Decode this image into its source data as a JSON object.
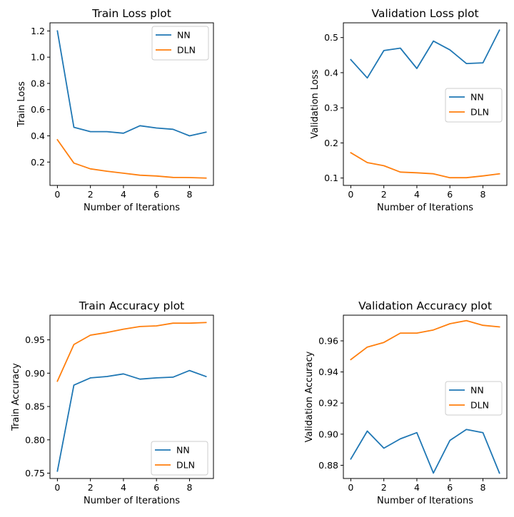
{
  "chart_data": [
    {
      "type": "line",
      "title": "Train Loss plot",
      "xlabel": "Number of Iterations",
      "ylabel": "Train Loss",
      "x": [
        0,
        1,
        2,
        3,
        4,
        5,
        6,
        7,
        8,
        9
      ],
      "xticks": [
        0,
        2,
        4,
        6,
        8
      ],
      "xticklabels": [
        "0",
        "2",
        "4",
        "6",
        "8"
      ],
      "yticks": [
        0.2,
        0.4,
        0.6,
        0.8,
        1.0,
        1.2
      ],
      "yticklabels": [
        "0.2",
        "0.4",
        "0.6",
        "0.8",
        "1.0",
        "1.2"
      ],
      "xlim": [
        -0.45,
        9.45
      ],
      "ylim": [
        0.022,
        1.262
      ],
      "legend_position": "top-right",
      "series": [
        {
          "name": "NN",
          "color": "#1f77b4",
          "values": [
            1.2,
            0.465,
            0.432,
            0.432,
            0.42,
            0.477,
            0.46,
            0.45,
            0.4,
            0.428
          ]
        },
        {
          "name": "DLN",
          "color": "#ff7f0e",
          "values": [
            0.37,
            0.192,
            0.148,
            0.13,
            0.115,
            0.1,
            0.094,
            0.083,
            0.082,
            0.078
          ]
        }
      ]
    },
    {
      "type": "line",
      "title": "Validation Loss plot",
      "xlabel": "Number of Iterations",
      "ylabel": "Validation Loss",
      "x": [
        0,
        1,
        2,
        3,
        4,
        5,
        6,
        7,
        8,
        9
      ],
      "xticks": [
        0,
        2,
        4,
        6,
        8
      ],
      "xticklabels": [
        "0",
        "2",
        "4",
        "6",
        "8"
      ],
      "yticks": [
        0.1,
        0.2,
        0.3,
        0.4,
        0.5
      ],
      "yticklabels": [
        "0.1",
        "0.2",
        "0.3",
        "0.4",
        "0.5"
      ],
      "xlim": [
        -0.45,
        9.45
      ],
      "ylim": [
        0.079,
        0.542
      ],
      "legend_position": "center-right",
      "series": [
        {
          "name": "NN",
          "color": "#1f77b4",
          "values": [
            0.437,
            0.385,
            0.463,
            0.47,
            0.412,
            0.49,
            0.465,
            0.426,
            0.428,
            0.521
          ]
        },
        {
          "name": "DLN",
          "color": "#ff7f0e",
          "values": [
            0.172,
            0.144,
            0.135,
            0.117,
            0.115,
            0.112,
            0.101,
            0.101,
            0.106,
            0.112
          ]
        }
      ]
    },
    {
      "type": "line",
      "title": "Train Accuracy plot",
      "xlabel": "Number of Iterations",
      "ylabel": "Train Accuracy",
      "x": [
        0,
        1,
        2,
        3,
        4,
        5,
        6,
        7,
        8,
        9
      ],
      "xticks": [
        0,
        2,
        4,
        6,
        8
      ],
      "xticklabels": [
        "0",
        "2",
        "4",
        "6",
        "8"
      ],
      "yticks": [
        0.75,
        0.8,
        0.85,
        0.9,
        0.95
      ],
      "yticklabels": [
        "0.75",
        "0.80",
        "0.85",
        "0.90",
        "0.95"
      ],
      "xlim": [
        -0.45,
        9.45
      ],
      "ylim": [
        0.742,
        0.987
      ],
      "legend_position": "bottom-right",
      "series": [
        {
          "name": "NN",
          "color": "#1f77b4",
          "values": [
            0.753,
            0.882,
            0.893,
            0.895,
            0.899,
            0.891,
            0.893,
            0.894,
            0.904,
            0.895
          ]
        },
        {
          "name": "DLN",
          "color": "#ff7f0e",
          "values": [
            0.888,
            0.943,
            0.957,
            0.961,
            0.966,
            0.97,
            0.971,
            0.975,
            0.975,
            0.976
          ]
        }
      ]
    },
    {
      "type": "line",
      "title": "Validation Accuracy plot",
      "xlabel": "Number of Iterations",
      "ylabel": "Validation Accuracy",
      "x": [
        0,
        1,
        2,
        3,
        4,
        5,
        6,
        7,
        8,
        9
      ],
      "xticks": [
        0,
        2,
        4,
        6,
        8
      ],
      "xticklabels": [
        "0",
        "2",
        "4",
        "6",
        "8"
      ],
      "yticks": [
        0.88,
        0.9,
        0.92,
        0.94,
        0.96
      ],
      "yticklabels": [
        "0.88",
        "0.90",
        "0.92",
        "0.94",
        "0.96"
      ],
      "xlim": [
        -0.45,
        9.45
      ],
      "ylim": [
        0.8715,
        0.9765
      ],
      "legend_position": "center-right",
      "series": [
        {
          "name": "NN",
          "color": "#1f77b4",
          "values": [
            0.884,
            0.902,
            0.891,
            0.897,
            0.901,
            0.875,
            0.896,
            0.903,
            0.901,
            0.875
          ]
        },
        {
          "name": "DLN",
          "color": "#ff7f0e",
          "values": [
            0.948,
            0.956,
            0.959,
            0.965,
            0.965,
            0.967,
            0.971,
            0.973,
            0.97,
            0.969
          ]
        }
      ]
    }
  ]
}
